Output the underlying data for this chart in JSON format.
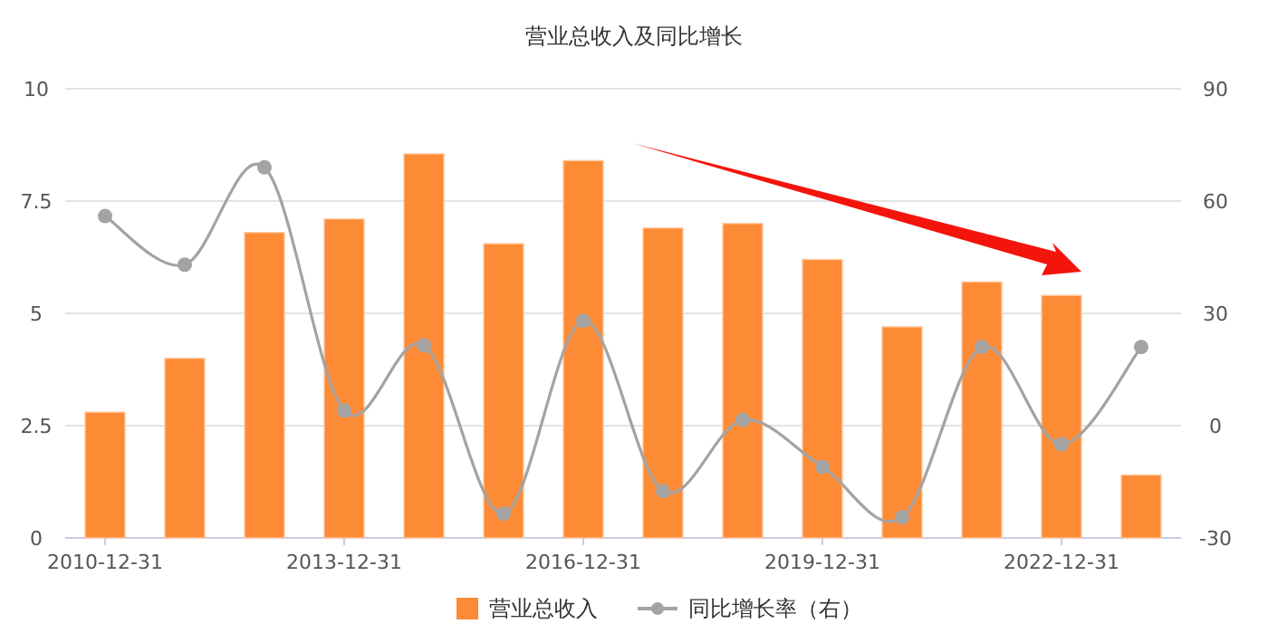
{
  "chart_data": {
    "type": "bar",
    "title": "营业总收入及同比增长",
    "categories": [
      "2010-12-31",
      null,
      null,
      "2013-12-31",
      null,
      null,
      "2016-12-31",
      null,
      null,
      "2019-12-31",
      null,
      null,
      "2022-12-31",
      null
    ],
    "series": [
      {
        "name": "营业总收入",
        "color": "#fd8a35",
        "values": [
          2.8,
          4.0,
          6.8,
          7.1,
          8.55,
          6.55,
          8.4,
          6.9,
          7.0,
          6.2,
          4.7,
          5.7,
          5.4,
          1.4
        ]
      },
      {
        "name": "同比增长率（右）",
        "type": "line",
        "axis": "y2",
        "color": "#a3a3a3",
        "values": [
          56,
          43,
          69,
          4,
          21.5,
          -23.5,
          28,
          -17.5,
          1.5,
          -11,
          -24.5,
          21,
          -5,
          21
        ]
      }
    ],
    "ylim": [
      0,
      10
    ],
    "yticks": [
      0,
      2.5,
      5,
      7.5,
      10
    ],
    "y2lim": [
      -30,
      90
    ],
    "y2ticks": [
      -30,
      0,
      30,
      60,
      90
    ],
    "grid": "y",
    "legend": "bottom",
    "marker": "circle"
  }
}
